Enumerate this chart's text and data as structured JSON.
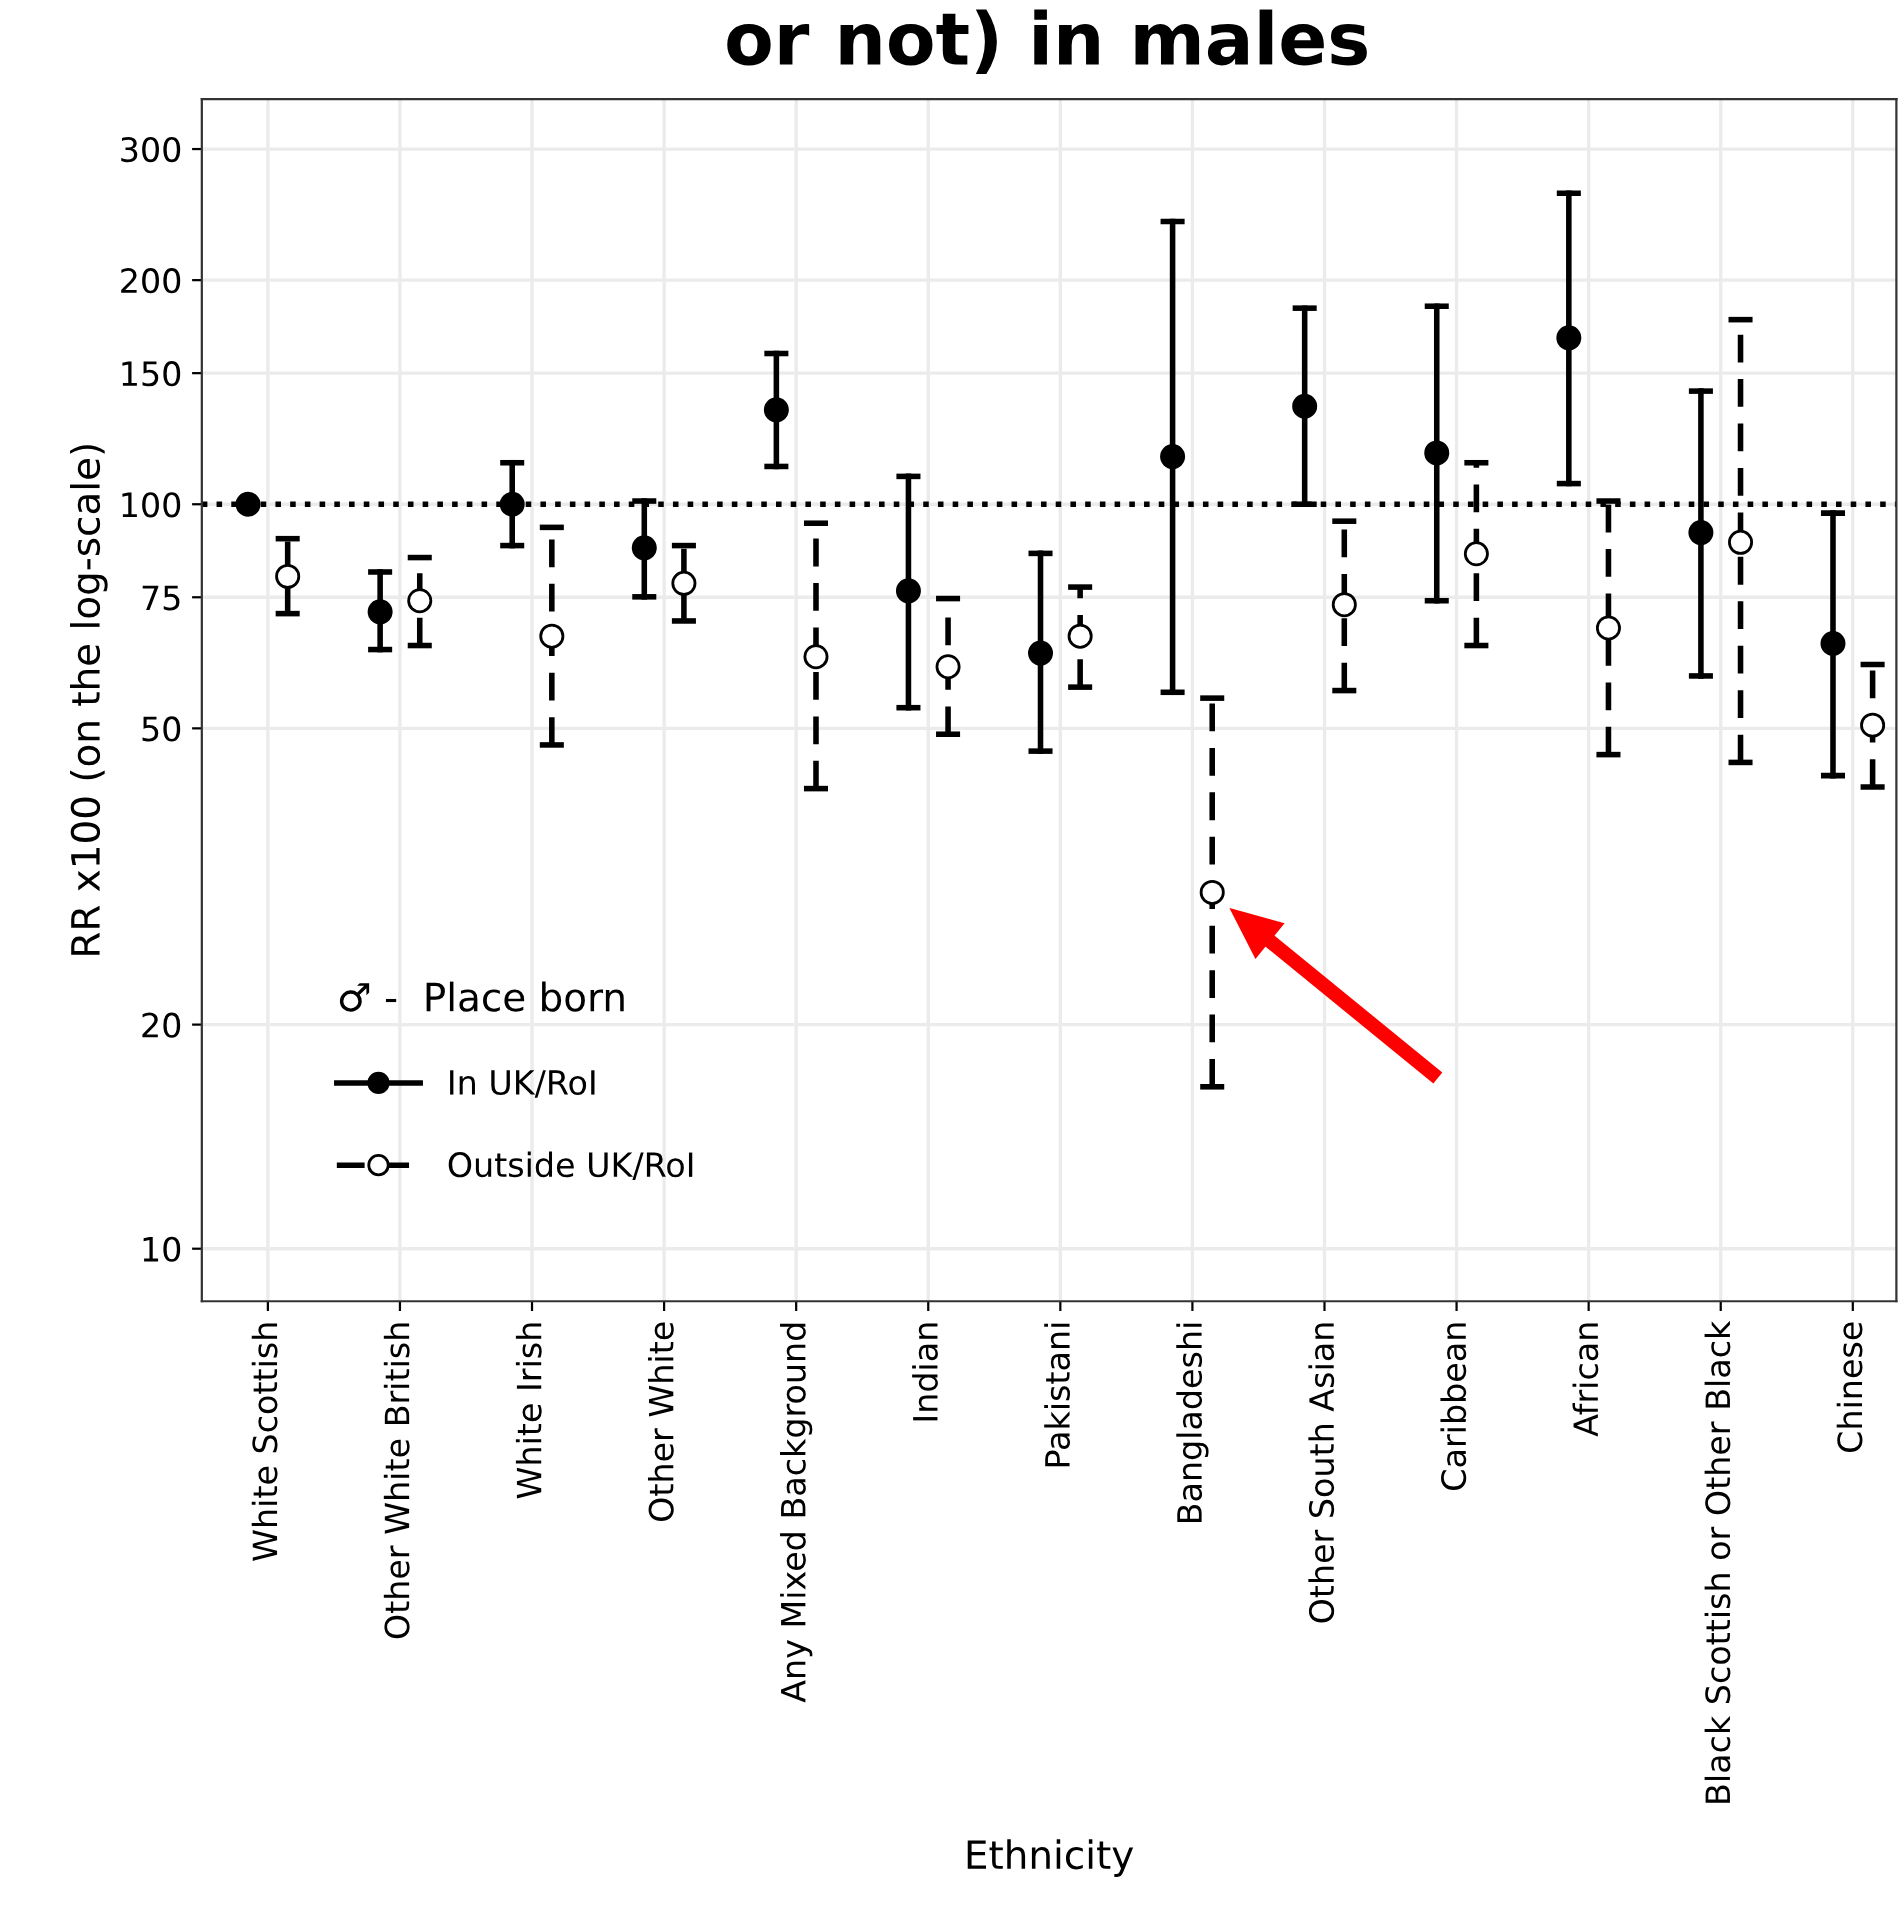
{
  "chart_data": {
    "type": "scatter",
    "title": "or not) in males",
    "xlabel": "Ethnicity",
    "ylabel": "RR x100 (on the log-scale)",
    "legend_title": "♂ -  Place born",
    "categories": [
      "White Scottish",
      "Other White British",
      "White Irish",
      "Other White",
      "Any Mixed Background",
      "Indian",
      "Pakistani",
      "Bangladeshi",
      "Other South Asian",
      "Caribbean",
      "African",
      "Black Scottish or Other Black",
      "Chinese"
    ],
    "series": [
      {
        "name": "In UK/RoI",
        "color": "#000000",
        "line_style": "solid",
        "values": [
          100,
          71.7,
          100,
          87.4,
          133.9,
          76.5,
          63.1,
          115.9,
          135.4,
          117.2,
          167.3,
          91.6,
          65.0
        ],
        "errors": [
          null,
          [
            63.8,
            81.1
          ],
          [
            88,
            113.7
          ],
          [
            75.1,
            101
          ],
          [
            112.4,
            159.4
          ],
          [
            53.3,
            109
          ],
          [
            46.6,
            85.9
          ],
          [
            55.9,
            239.8
          ],
          [
            100,
            183.4
          ],
          [
            74.2,
            184.5
          ],
          [
            106.6,
            261.7
          ],
          [
            58.8,
            141.9
          ],
          [
            43.2,
            97.3
          ]
        ]
      },
      {
        "name": "Outside UK/RoI",
        "color": "#000000",
        "line_style": "dashed",
        "values": [
          80.0,
          74.2,
          66.5,
          78.3,
          62.4,
          60.5,
          66.5,
          30.1,
          73.3,
          85.8,
          68.2,
          88.9,
          50.5
        ],
        "errors": [
          [
            71.3,
            89.9
          ],
          [
            64.6,
            84.8
          ],
          [
            47.5,
            93.1
          ],
          [
            69.7,
            88
          ],
          [
            41.5,
            94.3
          ],
          [
            49.1,
            74.7
          ],
          [
            56.8,
            77.4
          ],
          [
            16.5,
            54.9
          ],
          [
            56.2,
            94.9
          ],
          [
            64.6,
            113.7
          ],
          [
            46.1,
            101
          ],
          [
            45.0,
            177
          ],
          [
            41.7,
            60.9
          ]
        ]
      }
    ],
    "marker": "circle",
    "log": "y",
    "ylim": [
      8.5,
      350
    ],
    "yticks": [
      10,
      20,
      50,
      75,
      100,
      150,
      200,
      300
    ],
    "ref_lines": [
      {
        "axis": "y",
        "value": 100,
        "line_style": "dotted"
      }
    ],
    "grid": true,
    "legend": "bottom left"
  }
}
